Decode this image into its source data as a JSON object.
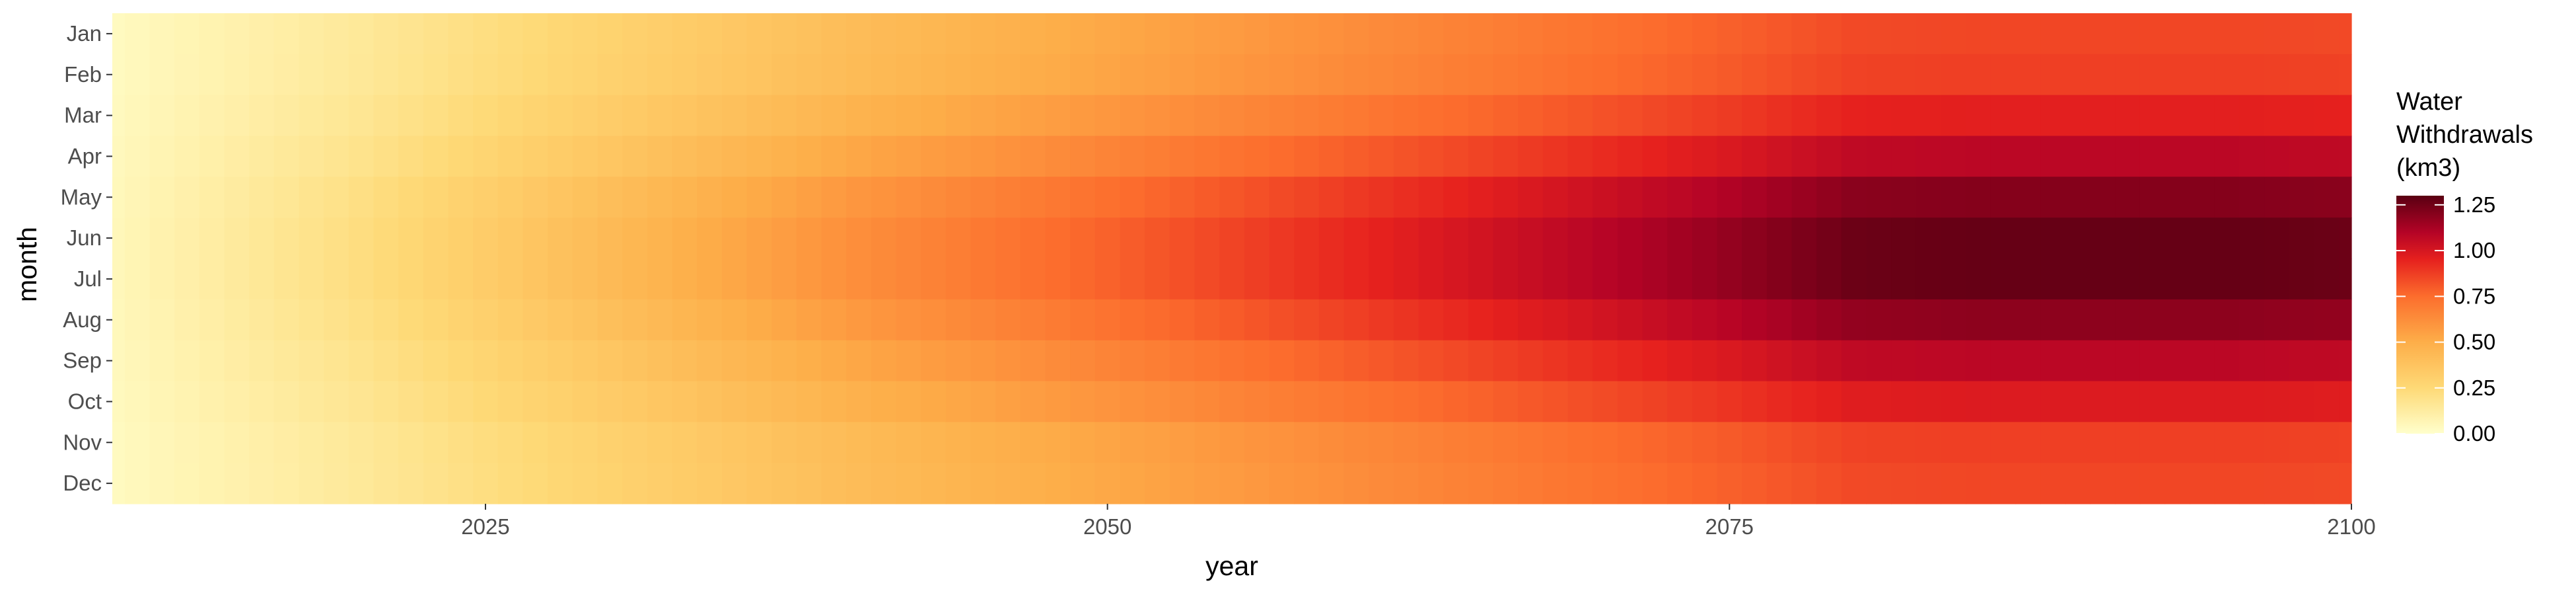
{
  "chart_data": {
    "type": "heatmap",
    "title": "",
    "xlabel": "year",
    "ylabel": "month",
    "x_range": [
      2010,
      2100
    ],
    "x_ticks": [
      "2025",
      "2050",
      "2075",
      "2100"
    ],
    "months": [
      "Jan",
      "Feb",
      "Mar",
      "Apr",
      "May",
      "Jun",
      "Jul",
      "Aug",
      "Sep",
      "Oct",
      "Nov",
      "Dec"
    ],
    "month_factor": [
      0.87,
      0.89,
      0.98,
      1.1,
      1.23,
      1.3,
      1.3,
      1.21,
      1.1,
      1.0,
      0.89,
      0.87
    ],
    "year_total_points": {
      "x": [
        2010,
        2020,
        2030,
        2040,
        2050,
        2060,
        2070,
        2075,
        2080,
        2085,
        2090,
        2095,
        2100
      ],
      "value_base": [
        0.04,
        0.17,
        0.33,
        0.48,
        0.6,
        0.72,
        0.84,
        0.9,
        0.97,
        0.98,
        0.98,
        0.98,
        0.97
      ]
    },
    "legend": {
      "title_lines": [
        "Water",
        "Withdrawals",
        "(km3)"
      ],
      "labels": [
        "1.25",
        "1.00",
        "0.75",
        "0.50",
        "0.25",
        "0.00"
      ],
      "values": [
        1.25,
        1.0,
        0.75,
        0.5,
        0.25,
        0.0
      ],
      "range": [
        0,
        1.3
      ]
    },
    "color_scale": [
      {
        "v": 0.0,
        "c": "#ffffcc"
      },
      {
        "v": 0.25,
        "c": "#fed976"
      },
      {
        "v": 0.5,
        "c": "#fdae49"
      },
      {
        "v": 0.75,
        "c": "#fc6d2d"
      },
      {
        "v": 0.95,
        "c": "#e6211e"
      },
      {
        "v": 1.1,
        "c": "#b40326"
      },
      {
        "v": 1.3,
        "c": "#5a0012"
      }
    ]
  }
}
